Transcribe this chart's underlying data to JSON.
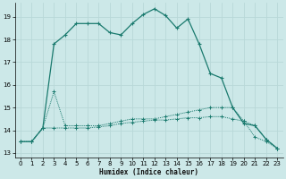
{
  "xlabel": "Humidex (Indice chaleur)",
  "background_color": "#cce8e8",
  "grid_color": "#b8d8d8",
  "line_color": "#1a7a6e",
  "xlim": [
    -0.5,
    23.5
  ],
  "ylim": [
    12.8,
    19.6
  ],
  "yticks": [
    13,
    14,
    15,
    16,
    17,
    18,
    19
  ],
  "xticks": [
    0,
    1,
    2,
    3,
    4,
    5,
    6,
    7,
    8,
    9,
    10,
    11,
    12,
    13,
    14,
    15,
    16,
    17,
    18,
    19,
    20,
    21,
    22,
    23
  ],
  "curve1_x": [
    0,
    1,
    2,
    3,
    4,
    5,
    6,
    7,
    8,
    9,
    10,
    11,
    12,
    13,
    14,
    15,
    16,
    17,
    18,
    19,
    20,
    21,
    22,
    23
  ],
  "curve1_y": [
    13.5,
    13.5,
    14.1,
    17.8,
    18.2,
    18.7,
    18.7,
    18.7,
    18.3,
    18.2,
    18.7,
    19.1,
    19.35,
    19.05,
    18.5,
    18.9,
    17.8,
    16.5,
    16.3,
    15.0,
    14.3,
    14.2,
    13.6,
    13.2
  ],
  "curve2_x": [
    0,
    1,
    2,
    3,
    4,
    5,
    6,
    7,
    8,
    9,
    10,
    11,
    12,
    13,
    14,
    15,
    16,
    17,
    18,
    19,
    20,
    21,
    22,
    23
  ],
  "curve2_y": [
    13.5,
    13.5,
    14.1,
    15.7,
    14.2,
    14.2,
    14.2,
    14.2,
    14.3,
    14.4,
    14.5,
    14.5,
    14.5,
    14.6,
    14.7,
    14.8,
    14.9,
    15.0,
    15.0,
    15.0,
    14.4,
    13.7,
    13.5,
    13.2
  ],
  "curve3_x": [
    0,
    1,
    2,
    3,
    4,
    5,
    6,
    7,
    8,
    9,
    10,
    11,
    12,
    13,
    14,
    15,
    16,
    17,
    18,
    19,
    20,
    21,
    22,
    23
  ],
  "curve3_y": [
    13.5,
    13.5,
    14.1,
    14.1,
    14.1,
    14.1,
    14.1,
    14.15,
    14.2,
    14.3,
    14.35,
    14.4,
    14.45,
    14.45,
    14.5,
    14.55,
    14.55,
    14.6,
    14.6,
    14.5,
    14.4,
    14.2,
    13.6,
    13.2
  ]
}
